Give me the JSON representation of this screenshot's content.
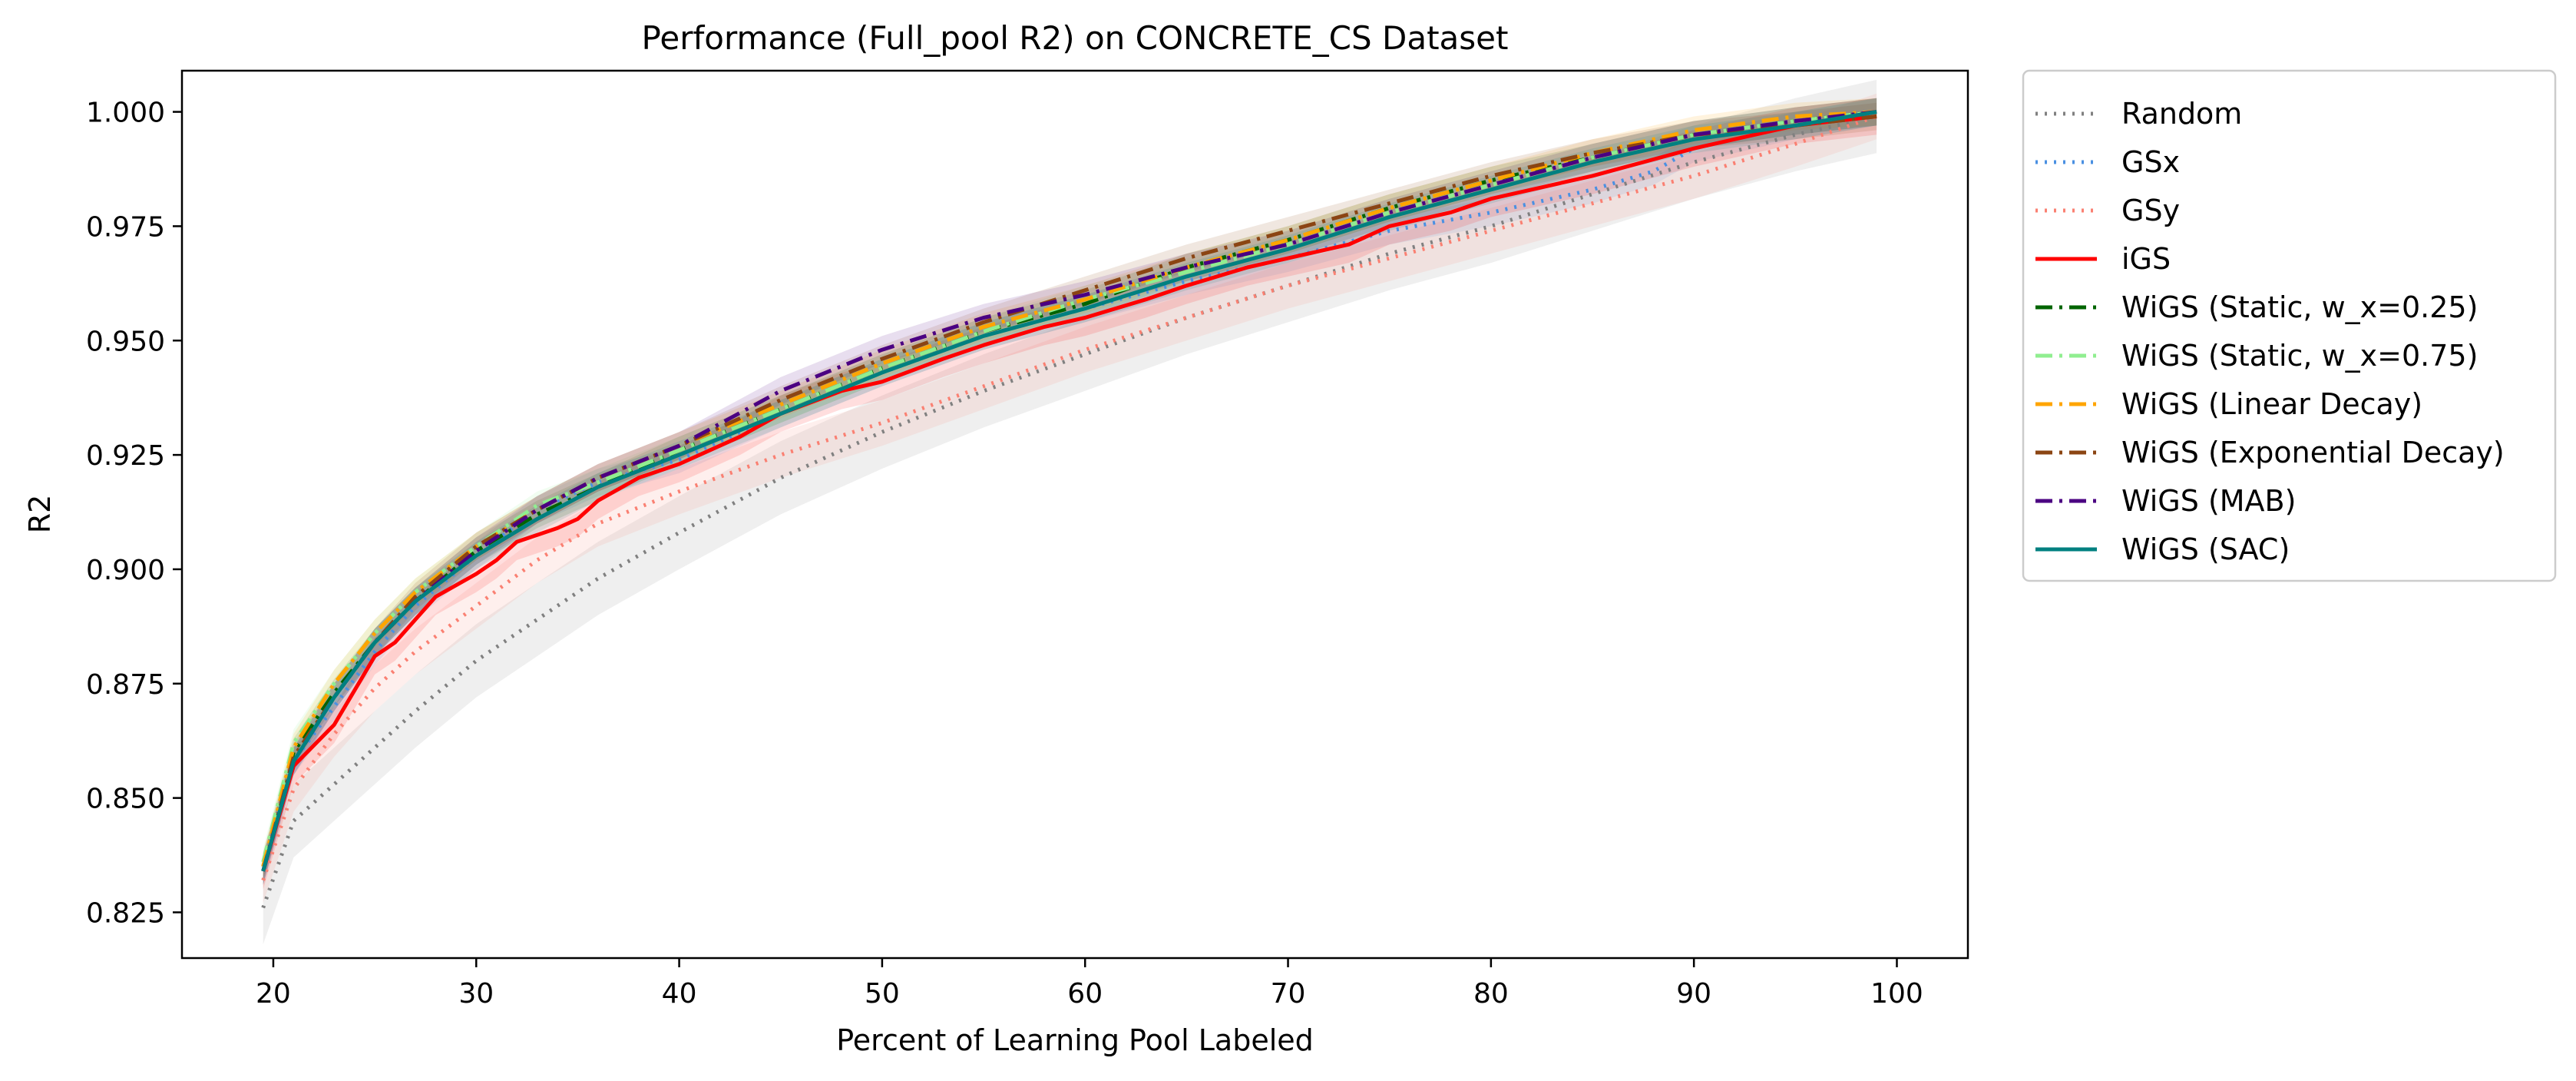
{
  "chart_data": {
    "type": "line",
    "title": "Performance (Full_pool R2) on CONCRETE_CS Dataset",
    "xlabel": "Percent of Learning Pool Labeled",
    "ylabel": "R2",
    "xlim": [
      15.5,
      103.5
    ],
    "ylim": [
      0.815,
      1.009
    ],
    "xticks": [
      20,
      30,
      40,
      50,
      60,
      70,
      80,
      90,
      100
    ],
    "yticks": [
      0.825,
      0.85,
      0.875,
      0.9,
      0.925,
      0.95,
      0.975,
      1.0
    ],
    "xtick_labels": [
      "20",
      "30",
      "40",
      "50",
      "60",
      "70",
      "80",
      "90",
      "100"
    ],
    "ytick_labels": [
      "0.825",
      "0.850",
      "0.875",
      "0.900",
      "0.925",
      "0.950",
      "0.975",
      "1.000"
    ],
    "grid": false,
    "legend_position": "outside right, top",
    "series": [
      {
        "name": "Random",
        "color": "#808080",
        "style": "dotted",
        "band": 0.008,
        "x": [
          19.5,
          21,
          23,
          25,
          27,
          30,
          33,
          36,
          40,
          45,
          50,
          55,
          60,
          65,
          70,
          75,
          80,
          85,
          90,
          95,
          99
        ],
        "y": [
          0.826,
          0.845,
          0.853,
          0.861,
          0.869,
          0.88,
          0.889,
          0.898,
          0.908,
          0.92,
          0.93,
          0.939,
          0.947,
          0.955,
          0.962,
          0.969,
          0.975,
          0.982,
          0.989,
          0.995,
          0.999
        ]
      },
      {
        "name": "GSx",
        "color": "#4a90e2",
        "style": "dotted",
        "band": 0.003,
        "x": [
          19.5,
          21,
          23,
          25,
          27,
          30,
          33,
          36,
          40,
          45,
          50,
          55,
          60,
          65,
          70,
          75,
          80,
          85,
          88,
          90,
          95,
          99
        ],
        "y": [
          0.834,
          0.858,
          0.87,
          0.882,
          0.892,
          0.903,
          0.913,
          0.919,
          0.924,
          0.934,
          0.943,
          0.951,
          0.957,
          0.963,
          0.968,
          0.974,
          0.978,
          0.983,
          0.987,
          0.992,
          0.997,
          1.0
        ]
      },
      {
        "name": "GSy",
        "color": "#fa8072",
        "style": "dotted",
        "band": 0.005,
        "x": [
          19.5,
          21,
          23,
          25,
          27,
          30,
          33,
          36,
          40,
          45,
          50,
          55,
          60,
          65,
          70,
          75,
          80,
          85,
          90,
          95,
          99
        ],
        "y": [
          0.832,
          0.852,
          0.864,
          0.874,
          0.882,
          0.892,
          0.902,
          0.91,
          0.917,
          0.925,
          0.932,
          0.94,
          0.948,
          0.955,
          0.962,
          0.968,
          0.974,
          0.98,
          0.986,
          0.993,
          0.999
        ]
      },
      {
        "name": "iGS",
        "color": "#ff0000",
        "style": "solid",
        "band": 0.004,
        "x": [
          19.5,
          21,
          23,
          25,
          26,
          27,
          28,
          30,
          31,
          32,
          34,
          35,
          36,
          38,
          40,
          43,
          45,
          48,
          50,
          53,
          55,
          58,
          60,
          63,
          65,
          68,
          70,
          73,
          75,
          78,
          80,
          85,
          90,
          95,
          99
        ],
        "y": [
          0.834,
          0.857,
          0.866,
          0.881,
          0.884,
          0.889,
          0.894,
          0.899,
          0.902,
          0.906,
          0.909,
          0.911,
          0.915,
          0.92,
          0.923,
          0.929,
          0.934,
          0.939,
          0.941,
          0.946,
          0.949,
          0.953,
          0.955,
          0.959,
          0.962,
          0.966,
          0.968,
          0.971,
          0.975,
          0.978,
          0.981,
          0.986,
          0.992,
          0.997,
          0.999
        ]
      },
      {
        "name": "WiGS (Static, w_x=0.25)",
        "color": "#006400",
        "style": "dashdot",
        "band": 0.003,
        "x": [
          19.5,
          21,
          23,
          25,
          27,
          30,
          33,
          36,
          40,
          45,
          50,
          55,
          60,
          65,
          70,
          75,
          80,
          85,
          90,
          95,
          99
        ],
        "y": [
          0.835,
          0.86,
          0.873,
          0.884,
          0.893,
          0.904,
          0.912,
          0.918,
          0.926,
          0.935,
          0.944,
          0.952,
          0.958,
          0.966,
          0.972,
          0.979,
          0.985,
          0.99,
          0.995,
          0.998,
          1.0
        ]
      },
      {
        "name": "WiGS (Static, w_x=0.75)",
        "color": "#90ee90",
        "style": "dashdot",
        "band": 0.003,
        "x": [
          19.5,
          21,
          23,
          25,
          27,
          30,
          33,
          36,
          40,
          45,
          50,
          55,
          60,
          65,
          70,
          75,
          80,
          85,
          90,
          95,
          99
        ],
        "y": [
          0.836,
          0.862,
          0.875,
          0.886,
          0.895,
          0.905,
          0.914,
          0.919,
          0.926,
          0.935,
          0.944,
          0.952,
          0.959,
          0.965,
          0.971,
          0.978,
          0.984,
          0.99,
          0.995,
          0.998,
          1.0
        ]
      },
      {
        "name": "WiGS (Linear Decay)",
        "color": "#ffa500",
        "style": "dashdot",
        "band": 0.003,
        "x": [
          19.5,
          21,
          23,
          25,
          27,
          30,
          33,
          36,
          40,
          45,
          50,
          55,
          60,
          65,
          70,
          75,
          80,
          85,
          90,
          95,
          99
        ],
        "y": [
          0.835,
          0.861,
          0.875,
          0.886,
          0.895,
          0.905,
          0.913,
          0.92,
          0.927,
          0.936,
          0.945,
          0.953,
          0.959,
          0.966,
          0.972,
          0.979,
          0.985,
          0.991,
          0.996,
          0.999,
          1.0
        ]
      },
      {
        "name": "WiGS (Exponential Decay)",
        "color": "#8b4513",
        "style": "dashdot",
        "band": 0.003,
        "x": [
          19.5,
          21,
          23,
          25,
          27,
          30,
          33,
          36,
          40,
          45,
          50,
          55,
          60,
          65,
          70,
          75,
          80,
          85,
          90,
          95,
          99
        ],
        "y": [
          0.834,
          0.859,
          0.872,
          0.884,
          0.894,
          0.905,
          0.913,
          0.92,
          0.927,
          0.937,
          0.946,
          0.954,
          0.961,
          0.968,
          0.974,
          0.98,
          0.986,
          0.991,
          0.995,
          0.997,
          0.999
        ]
      },
      {
        "name": "WiGS (MAB)",
        "color": "#4b0082",
        "style": "dashdot",
        "band": 0.003,
        "x": [
          19.5,
          21,
          23,
          25,
          27,
          30,
          33,
          36,
          40,
          45,
          50,
          55,
          60,
          65,
          70,
          75,
          80,
          85,
          90,
          95,
          99
        ],
        "y": [
          0.834,
          0.858,
          0.872,
          0.884,
          0.893,
          0.904,
          0.913,
          0.92,
          0.927,
          0.939,
          0.948,
          0.955,
          0.96,
          0.966,
          0.971,
          0.978,
          0.984,
          0.99,
          0.995,
          0.998,
          1.0
        ]
      },
      {
        "name": "WiGS (SAC)",
        "color": "#008080",
        "style": "solid",
        "band": 0.003,
        "x": [
          19.5,
          21,
          23,
          25,
          27,
          30,
          33,
          36,
          40,
          45,
          50,
          55,
          60,
          65,
          70,
          75,
          80,
          85,
          90,
          95,
          99
        ],
        "y": [
          0.834,
          0.858,
          0.872,
          0.884,
          0.893,
          0.903,
          0.911,
          0.918,
          0.925,
          0.934,
          0.943,
          0.951,
          0.957,
          0.964,
          0.97,
          0.977,
          0.983,
          0.989,
          0.994,
          0.997,
          1.0
        ]
      }
    ]
  }
}
